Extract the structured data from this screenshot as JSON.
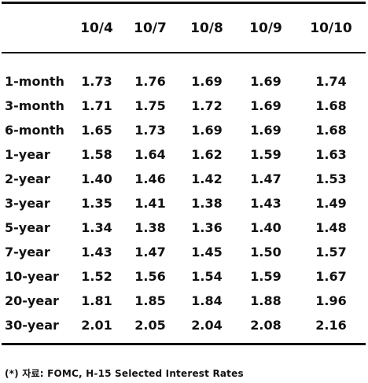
{
  "table": {
    "columns": [
      "",
      "10/4",
      "10/7",
      "10/8",
      "10/9",
      "10/10"
    ],
    "rows": [
      {
        "label": "1-month",
        "values": [
          "1.73",
          "1.76",
          "1.69",
          "1.69",
          "1.74"
        ]
      },
      {
        "label": "3-month",
        "values": [
          "1.71",
          "1.75",
          "1.72",
          "1.69",
          "1.68"
        ]
      },
      {
        "label": "6-month",
        "values": [
          "1.65",
          "1.73",
          "1.69",
          "1.69",
          "1.68"
        ]
      },
      {
        "label": "1-year",
        "values": [
          "1.58",
          "1.64",
          "1.62",
          "1.59",
          "1.63"
        ]
      },
      {
        "label": "2-year",
        "values": [
          "1.40",
          "1.46",
          "1.42",
          "1.47",
          "1.53"
        ]
      },
      {
        "label": "3-year",
        "values": [
          "1.35",
          "1.41",
          "1.38",
          "1.43",
          "1.49"
        ]
      },
      {
        "label": "5-year",
        "values": [
          "1.34",
          "1.38",
          "1.36",
          "1.40",
          "1.48"
        ]
      },
      {
        "label": "7-year",
        "values": [
          "1.43",
          "1.47",
          "1.45",
          "1.50",
          "1.57"
        ]
      },
      {
        "label": "10-year",
        "values": [
          "1.52",
          "1.56",
          "1.54",
          "1.59",
          "1.67"
        ]
      },
      {
        "label": "20-year",
        "values": [
          "1.81",
          "1.85",
          "1.84",
          "1.88",
          "1.96"
        ]
      },
      {
        "label": "30-year",
        "values": [
          "2.01",
          "2.05",
          "2.04",
          "2.08",
          "2.16"
        ]
      }
    ]
  },
  "source": "(*)  자료: FOMC,  H-15  Selected  Interest  Rates"
}
